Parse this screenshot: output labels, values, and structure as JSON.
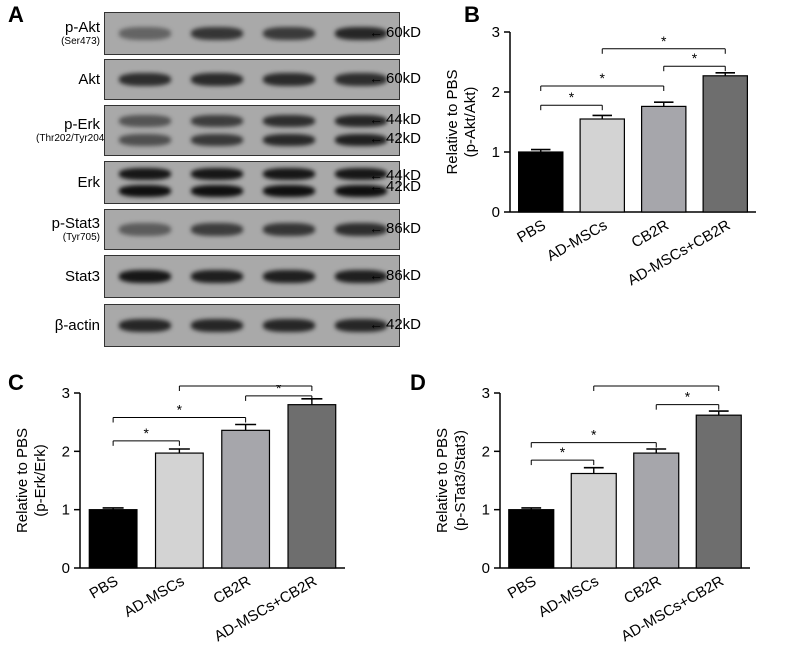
{
  "panel_letters": {
    "a": "A",
    "b": "B",
    "c": "C",
    "d": "D"
  },
  "western_blot": {
    "rows": [
      {
        "label": "p-Akt",
        "sublabel": "(Ser473)",
        "markers": [
          "60kD"
        ],
        "band_intensity": [
          0.45,
          0.75,
          0.72,
          0.85
        ]
      },
      {
        "label": "Akt",
        "sublabel": "",
        "markers": [
          "60kD"
        ],
        "band_intensity": [
          0.8,
          0.82,
          0.82,
          0.8
        ]
      },
      {
        "label": "p-Erk",
        "sublabel": "(Thr202/Tyr204)",
        "markers": [
          "44kD",
          "42kD"
        ],
        "band_intensity": [
          0.55,
          0.7,
          0.8,
          0.85
        ]
      },
      {
        "label": "Erk",
        "sublabel": "",
        "markers": [
          "44kD",
          "42kD"
        ],
        "band_intensity": [
          0.95,
          0.95,
          0.95,
          0.95
        ]
      },
      {
        "label": "p-Stat3",
        "sublabel": "(Tyr705)",
        "markers": [
          "86kD"
        ],
        "band_intensity": [
          0.5,
          0.7,
          0.75,
          0.8
        ]
      },
      {
        "label": "Stat3",
        "sublabel": "",
        "markers": [
          "86kD"
        ],
        "band_intensity": [
          0.95,
          0.9,
          0.9,
          0.9
        ]
      },
      {
        "label": "β-actin",
        "sublabel": "",
        "markers": [
          "42kD"
        ],
        "band_intensity": [
          0.85,
          0.85,
          0.85,
          0.85
        ]
      }
    ]
  },
  "colors": {
    "PBS": "#000000",
    "AD-MSCs": "#d3d3d3",
    "CB2R": "#a6a6ab",
    "AD-MSCs+CB2R": "#6e6e6e"
  },
  "chart_data": [
    {
      "panel": "B",
      "type": "bar",
      "categories": [
        "PBS",
        "AD-MSCs",
        "CB2R",
        "AD-MSCs+CB2R"
      ],
      "values": [
        1.0,
        1.55,
        1.76,
        2.27
      ],
      "errors": [
        0.04,
        0.06,
        0.07,
        0.05
      ],
      "ylabel": "Relative to PBS\n(p-Akt/Akt)",
      "ylim": [
        0,
        3
      ],
      "yticks": [
        0,
        1,
        2,
        3
      ],
      "significance": [
        {
          "from": 0,
          "to": 1,
          "label": "*"
        },
        {
          "from": 0,
          "to": 2,
          "label": "*"
        },
        {
          "from": 2,
          "to": 3,
          "label": "*"
        },
        {
          "from": 1,
          "to": 3,
          "label": "*"
        }
      ]
    },
    {
      "panel": "C",
      "type": "bar",
      "categories": [
        "PBS",
        "AD-MSCs",
        "CB2R",
        "AD-MSCs+CB2R"
      ],
      "values": [
        1.0,
        1.97,
        2.36,
        2.8
      ],
      "errors": [
        0.03,
        0.07,
        0.1,
        0.1
      ],
      "ylabel": "Relative to PBS\n(p-Erk/Erk)",
      "ylim": [
        0,
        3
      ],
      "yticks": [
        0,
        1,
        2,
        3
      ],
      "significance": [
        {
          "from": 0,
          "to": 1,
          "label": "*"
        },
        {
          "from": 0,
          "to": 2,
          "label": "*"
        },
        {
          "from": 2,
          "to": 3,
          "label": "*"
        },
        {
          "from": 1,
          "to": 3,
          "label": "*"
        }
      ]
    },
    {
      "panel": "D",
      "type": "bar",
      "categories": [
        "PBS",
        "AD-MSCs",
        "CB2R",
        "AD-MSCs+CB2R"
      ],
      "values": [
        1.0,
        1.62,
        1.97,
        2.62
      ],
      "errors": [
        0.03,
        0.1,
        0.07,
        0.07
      ],
      "ylabel": "Relative to PBS\n(p-STat3/Stat3)",
      "ylim": [
        0,
        3
      ],
      "yticks": [
        0,
        1,
        2,
        3
      ],
      "significance": [
        {
          "from": 0,
          "to": 1,
          "label": "*"
        },
        {
          "from": 0,
          "to": 2,
          "label": "*"
        },
        {
          "from": 2,
          "to": 3,
          "label": "*"
        },
        {
          "from": 1,
          "to": 3,
          "label": "*"
        }
      ]
    }
  ]
}
